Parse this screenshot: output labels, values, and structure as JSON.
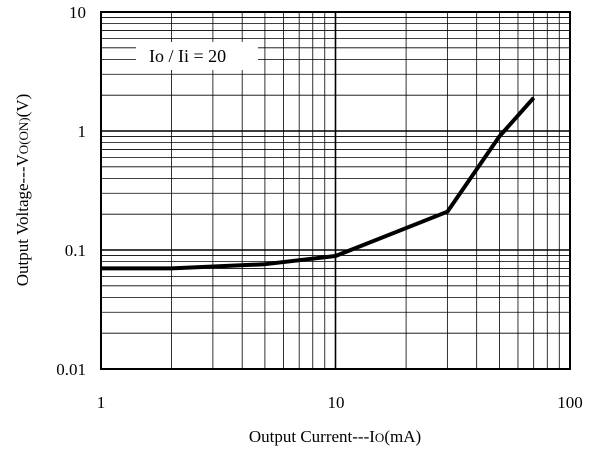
{
  "chart_data": {
    "type": "line",
    "x_scale": "log",
    "y_scale": "log",
    "xlim": [
      1,
      100
    ],
    "ylim": [
      0.01,
      10
    ],
    "x_ticks": [
      "1",
      "10",
      "100"
    ],
    "y_ticks": [
      "0.01",
      "0.1",
      "1",
      "10"
    ],
    "xlabel": {
      "main": "Output Current---I",
      "sub": "O",
      "tail": "(mA)"
    },
    "ylabel": {
      "main": "Output Voltage---V",
      "sub": "O(ON)",
      "tail": "(V)"
    },
    "annotation": "Io / Ii = 20",
    "grid": true,
    "series": [
      {
        "x": [
          1,
          2,
          5,
          10,
          30,
          50,
          70
        ],
        "y": [
          0.07,
          0.07,
          0.076,
          0.089,
          0.21,
          0.9,
          1.9
        ]
      }
    ]
  }
}
